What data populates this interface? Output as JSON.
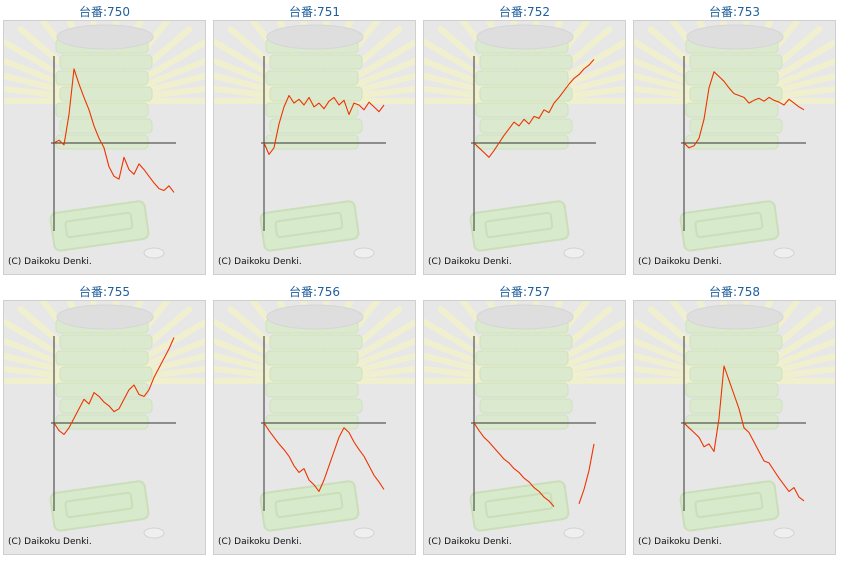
{
  "page": {
    "copyright": "(C) Daikoku Denki.",
    "line_color": "#ee3300"
  },
  "chart_data": [
    {
      "type": "line",
      "title": "台番:750",
      "x": [
        0,
        1,
        2,
        3,
        4,
        5,
        6,
        7,
        8,
        9,
        10,
        11,
        12,
        13,
        14,
        15,
        16,
        17,
        18,
        19,
        20,
        21,
        22,
        23,
        24
      ],
      "y": [
        0,
        3,
        -2,
        30,
        78,
        62,
        48,
        35,
        18,
        5,
        -5,
        -25,
        -35,
        -38,
        -15,
        -28,
        -33,
        -22,
        -28,
        -35,
        -42,
        -48,
        -50,
        -45,
        -52
      ],
      "ylim": [
        -100,
        100
      ],
      "grid": false
    },
    {
      "type": "line",
      "title": "台番:751",
      "x": [
        0,
        1,
        2,
        3,
        4,
        5,
        6,
        7,
        8,
        9,
        10,
        11,
        12,
        13,
        14,
        15,
        16,
        17,
        18,
        19,
        20,
        21,
        22,
        23,
        24
      ],
      "y": [
        0,
        -12,
        -5,
        20,
        38,
        50,
        42,
        46,
        40,
        48,
        38,
        42,
        36,
        44,
        48,
        40,
        45,
        30,
        42,
        40,
        35,
        43,
        38,
        33,
        40
      ],
      "ylim": [
        -100,
        100
      ],
      "grid": false
    },
    {
      "type": "line",
      "title": "台番:752",
      "x": [
        0,
        1,
        2,
        3,
        4,
        5,
        6,
        7,
        8,
        9,
        10,
        11,
        12,
        13,
        14,
        15,
        16,
        17,
        18,
        19,
        20,
        21,
        22,
        23,
        24
      ],
      "y": [
        0,
        -5,
        -10,
        -15,
        -8,
        0,
        8,
        15,
        22,
        18,
        25,
        20,
        28,
        26,
        35,
        32,
        42,
        48,
        55,
        62,
        68,
        72,
        78,
        82,
        88
      ],
      "ylim": [
        -100,
        100
      ],
      "grid": false
    },
    {
      "type": "line",
      "title": "台番:753",
      "x": [
        0,
        1,
        2,
        3,
        4,
        5,
        6,
        7,
        8,
        9,
        10,
        11,
        12,
        13,
        14,
        15,
        16,
        17,
        18,
        19,
        20,
        21,
        22,
        23,
        24
      ],
      "y": [
        0,
        -5,
        -3,
        5,
        25,
        58,
        75,
        70,
        65,
        58,
        52,
        50,
        48,
        42,
        45,
        47,
        44,
        48,
        45,
        43,
        40,
        46,
        42,
        38,
        35
      ],
      "ylim": [
        -100,
        100
      ],
      "grid": false
    },
    {
      "type": "line",
      "title": "台番:755",
      "x": [
        0,
        1,
        2,
        3,
        4,
        5,
        6,
        7,
        8,
        9,
        10,
        11,
        12,
        13,
        14,
        15,
        16,
        17,
        18,
        19,
        20,
        21,
        22,
        23,
        24
      ],
      "y": [
        0,
        -8,
        -12,
        -5,
        5,
        15,
        25,
        20,
        32,
        28,
        22,
        18,
        12,
        15,
        25,
        35,
        40,
        30,
        28,
        35,
        48,
        58,
        68,
        78,
        90
      ],
      "ylim": [
        -100,
        100
      ],
      "grid": false
    },
    {
      "type": "line",
      "title": "台番:756",
      "x": [
        0,
        1,
        2,
        3,
        4,
        5,
        6,
        7,
        8,
        9,
        10,
        11,
        12,
        13,
        14,
        15,
        16,
        17,
        18,
        19,
        20,
        21,
        22,
        23,
        24
      ],
      "y": [
        0,
        -8,
        -15,
        -22,
        -28,
        -35,
        -45,
        -52,
        -48,
        -60,
        -65,
        -72,
        -60,
        -45,
        -30,
        -15,
        -5,
        -10,
        -20,
        -28,
        -35,
        -45,
        -55,
        -62,
        -70
      ],
      "ylim": [
        -100,
        100
      ],
      "grid": false
    },
    {
      "type": "line",
      "title": "台番:757",
      "x": [
        0,
        1,
        2,
        3,
        4,
        5,
        6,
        7,
        8,
        9,
        10,
        11,
        12,
        13,
        14,
        15,
        16,
        17,
        18,
        19,
        20,
        21,
        22,
        23,
        24
      ],
      "y": [
        0,
        -8,
        -15,
        -20,
        -26,
        -32,
        -38,
        -42,
        -48,
        -52,
        -58,
        -62,
        -68,
        -72,
        -78,
        -82,
        -88,
        null,
        null,
        null,
        null,
        -85,
        -70,
        -50,
        -22
      ],
      "ylim": [
        -100,
        100
      ],
      "grid": false
    },
    {
      "type": "line",
      "title": "台番:758",
      "x": [
        0,
        1,
        2,
        3,
        4,
        5,
        6,
        7,
        8,
        9,
        10,
        11,
        12,
        13,
        14,
        15,
        16,
        17,
        18,
        19,
        20,
        21,
        22,
        23,
        24
      ],
      "y": [
        0,
        -5,
        -10,
        -15,
        -25,
        -22,
        -30,
        5,
        60,
        45,
        30,
        15,
        -5,
        -10,
        -20,
        -30,
        -40,
        -42,
        -50,
        -58,
        -65,
        -72,
        -68,
        -78,
        -82
      ],
      "ylim": [
        -100,
        100
      ],
      "grid": false
    }
  ]
}
